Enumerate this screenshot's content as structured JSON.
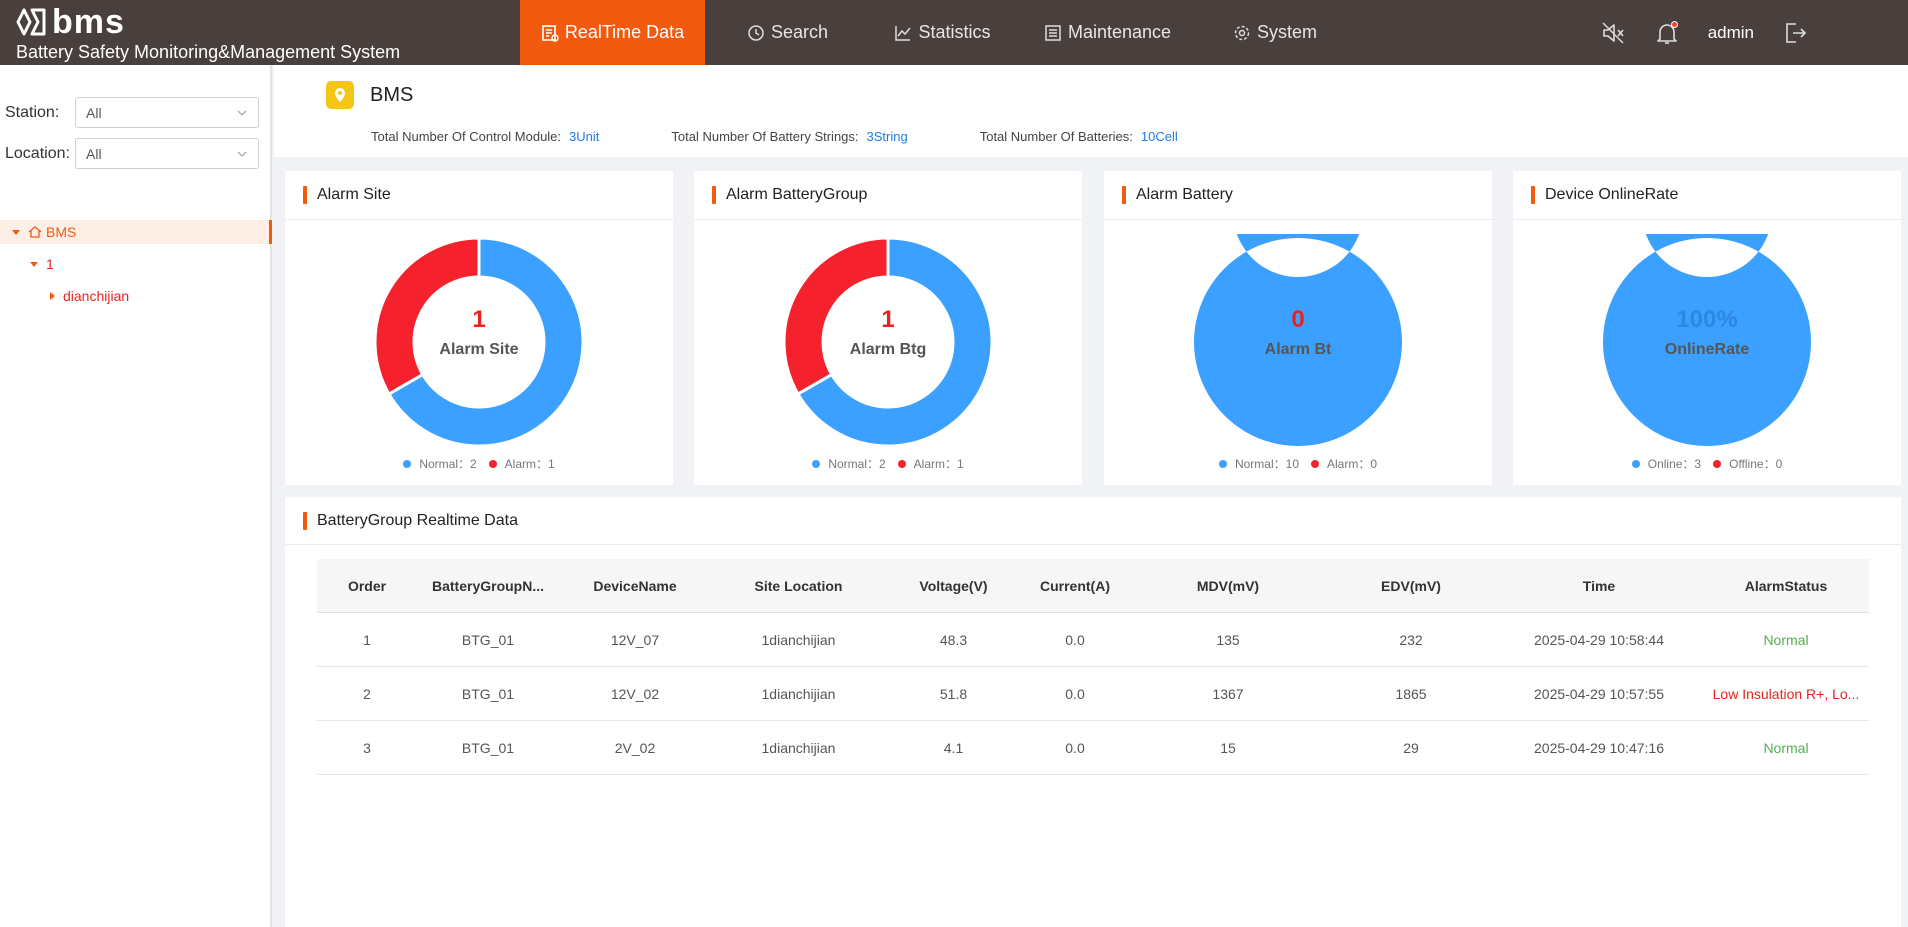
{
  "header": {
    "brand_name": "bms",
    "brand_subtitle": "Battery Safety Monitoring&Management System",
    "nav": [
      {
        "label": "RealTime Data",
        "icon": "realtime-icon",
        "active": true
      },
      {
        "label": "Search",
        "icon": "search-clock-icon",
        "active": false
      },
      {
        "label": "Statistics",
        "icon": "statistics-chart-icon",
        "active": false
      },
      {
        "label": "Maintenance",
        "icon": "maintenance-list-icon",
        "active": false
      },
      {
        "label": "System",
        "icon": "gear-icon",
        "active": false
      }
    ],
    "user": "admin",
    "accent_color": "#f25a0f",
    "bar_color": "#49403d"
  },
  "sidebar": {
    "station_label": "Station:",
    "station_value": "All",
    "location_label": "Location:",
    "location_value": "All",
    "tree": [
      {
        "label": "BMS",
        "level": 0,
        "expanded": true,
        "selected": true
      },
      {
        "label": "1",
        "level": 1,
        "expanded": true
      },
      {
        "label": "dianchijian",
        "level": 2,
        "expanded": false
      }
    ]
  },
  "summary": {
    "title": "BMS",
    "control_module_label": "Total Number Of Control Module:",
    "control_module_value": "3Unit",
    "strings_label": "Total Number Of Battery Strings:",
    "strings_value": "3String",
    "batteries_label": "Total Number Of Batteries:",
    "batteries_value": "10Cell"
  },
  "cards": [
    {
      "title": "Alarm Site",
      "value": "1",
      "subtitle": "Alarm Site",
      "value_color": "red",
      "legend": [
        {
          "label": "Normal：2",
          "color": "#3ba0ff"
        },
        {
          "label": "Alarm：1",
          "color": "#f5222d"
        }
      ]
    },
    {
      "title": "Alarm BatteryGroup",
      "value": "1",
      "subtitle": "Alarm Btg",
      "value_color": "red",
      "legend": [
        {
          "label": "Normal：2",
          "color": "#3ba0ff"
        },
        {
          "label": "Alarm：1",
          "color": "#f5222d"
        }
      ]
    },
    {
      "title": "Alarm Battery",
      "value": "0",
      "subtitle": "Alarm Bt",
      "value_color": "red",
      "legend": [
        {
          "label": "Normal：10",
          "color": "#3ba0ff"
        },
        {
          "label": "Alarm：0",
          "color": "#f5222d"
        }
      ]
    },
    {
      "title": "Device OnlineRate",
      "value": "100%",
      "subtitle": "OnlineRate",
      "value_color": "blue",
      "legend": [
        {
          "label": "Online：3",
          "color": "#3ba0ff"
        },
        {
          "label": "Offline：0",
          "color": "#f5222d"
        }
      ]
    }
  ],
  "chart_data": [
    {
      "type": "pie",
      "categories": [
        "Normal",
        "Alarm"
      ],
      "values": [
        2,
        1
      ]
    },
    {
      "type": "pie",
      "categories": [
        "Normal",
        "Alarm"
      ],
      "values": [
        2,
        1
      ]
    },
    {
      "type": "pie",
      "categories": [
        "Normal",
        "Alarm"
      ],
      "values": [
        10,
        0
      ]
    },
    {
      "type": "pie",
      "categories": [
        "Online",
        "Offline"
      ],
      "values": [
        3,
        0
      ]
    }
  ],
  "table": {
    "title": "BatteryGroup Realtime Data",
    "columns": [
      "Order",
      "BatteryGroupN...",
      "DeviceName",
      "Site Location",
      "Voltage(V)",
      "Current(A)",
      "MDV(mV)",
      "EDV(mV)",
      "Time",
      "AlarmStatus"
    ],
    "rows": [
      {
        "cells": [
          "1",
          "BTG_01",
          "12V_07",
          "1dianchijian",
          "48.3",
          "0.0",
          "135",
          "232",
          "2025-04-29 10:58:44",
          "Normal"
        ],
        "alarm": false
      },
      {
        "cells": [
          "2",
          "BTG_01",
          "12V_02",
          "1dianchijian",
          "51.8",
          "0.0",
          "1367",
          "1865",
          "2025-04-29 10:57:55",
          "Low Insulation R+, Lo..."
        ],
        "alarm": true
      },
      {
        "cells": [
          "3",
          "BTG_01",
          "2V_02",
          "1dianchijian",
          "4.1",
          "0.0",
          "15",
          "29",
          "2025-04-29 10:47:16",
          "Normal"
        ],
        "alarm": false
      }
    ]
  }
}
